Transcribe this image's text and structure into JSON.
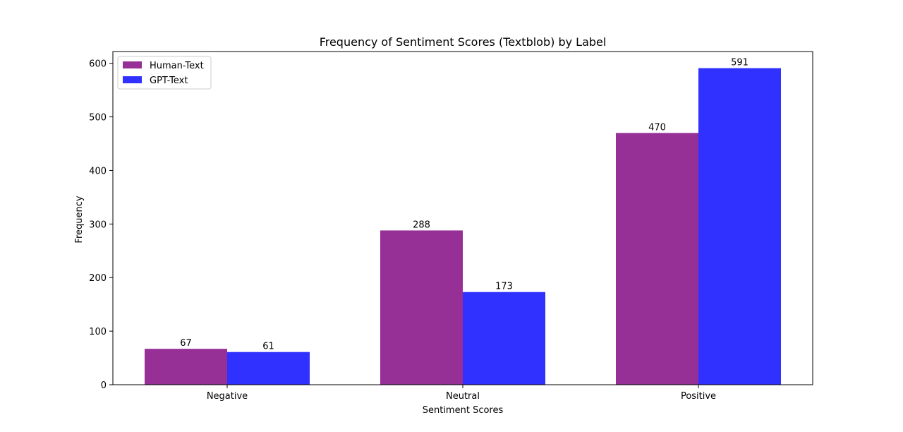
{
  "chart_data": {
    "type": "bar",
    "title": "Frequency of Sentiment Scores (Textblob) by Label",
    "xlabel": "Sentiment Scores",
    "ylabel": "Frequency",
    "categories": [
      "Negative",
      "Neutral",
      "Positive"
    ],
    "series": [
      {
        "name": "Human-Text",
        "values": [
          67,
          288,
          470
        ],
        "color": "#962f96"
      },
      {
        "name": "GPT-Text",
        "values": [
          61,
          173,
          591
        ],
        "color": "#3030ff"
      }
    ],
    "ylim": [
      0,
      622
    ],
    "yticks": [
      0,
      100,
      200,
      300,
      400,
      500,
      600
    ],
    "legend": "upper-left",
    "grid": false,
    "data_labels": true
  }
}
